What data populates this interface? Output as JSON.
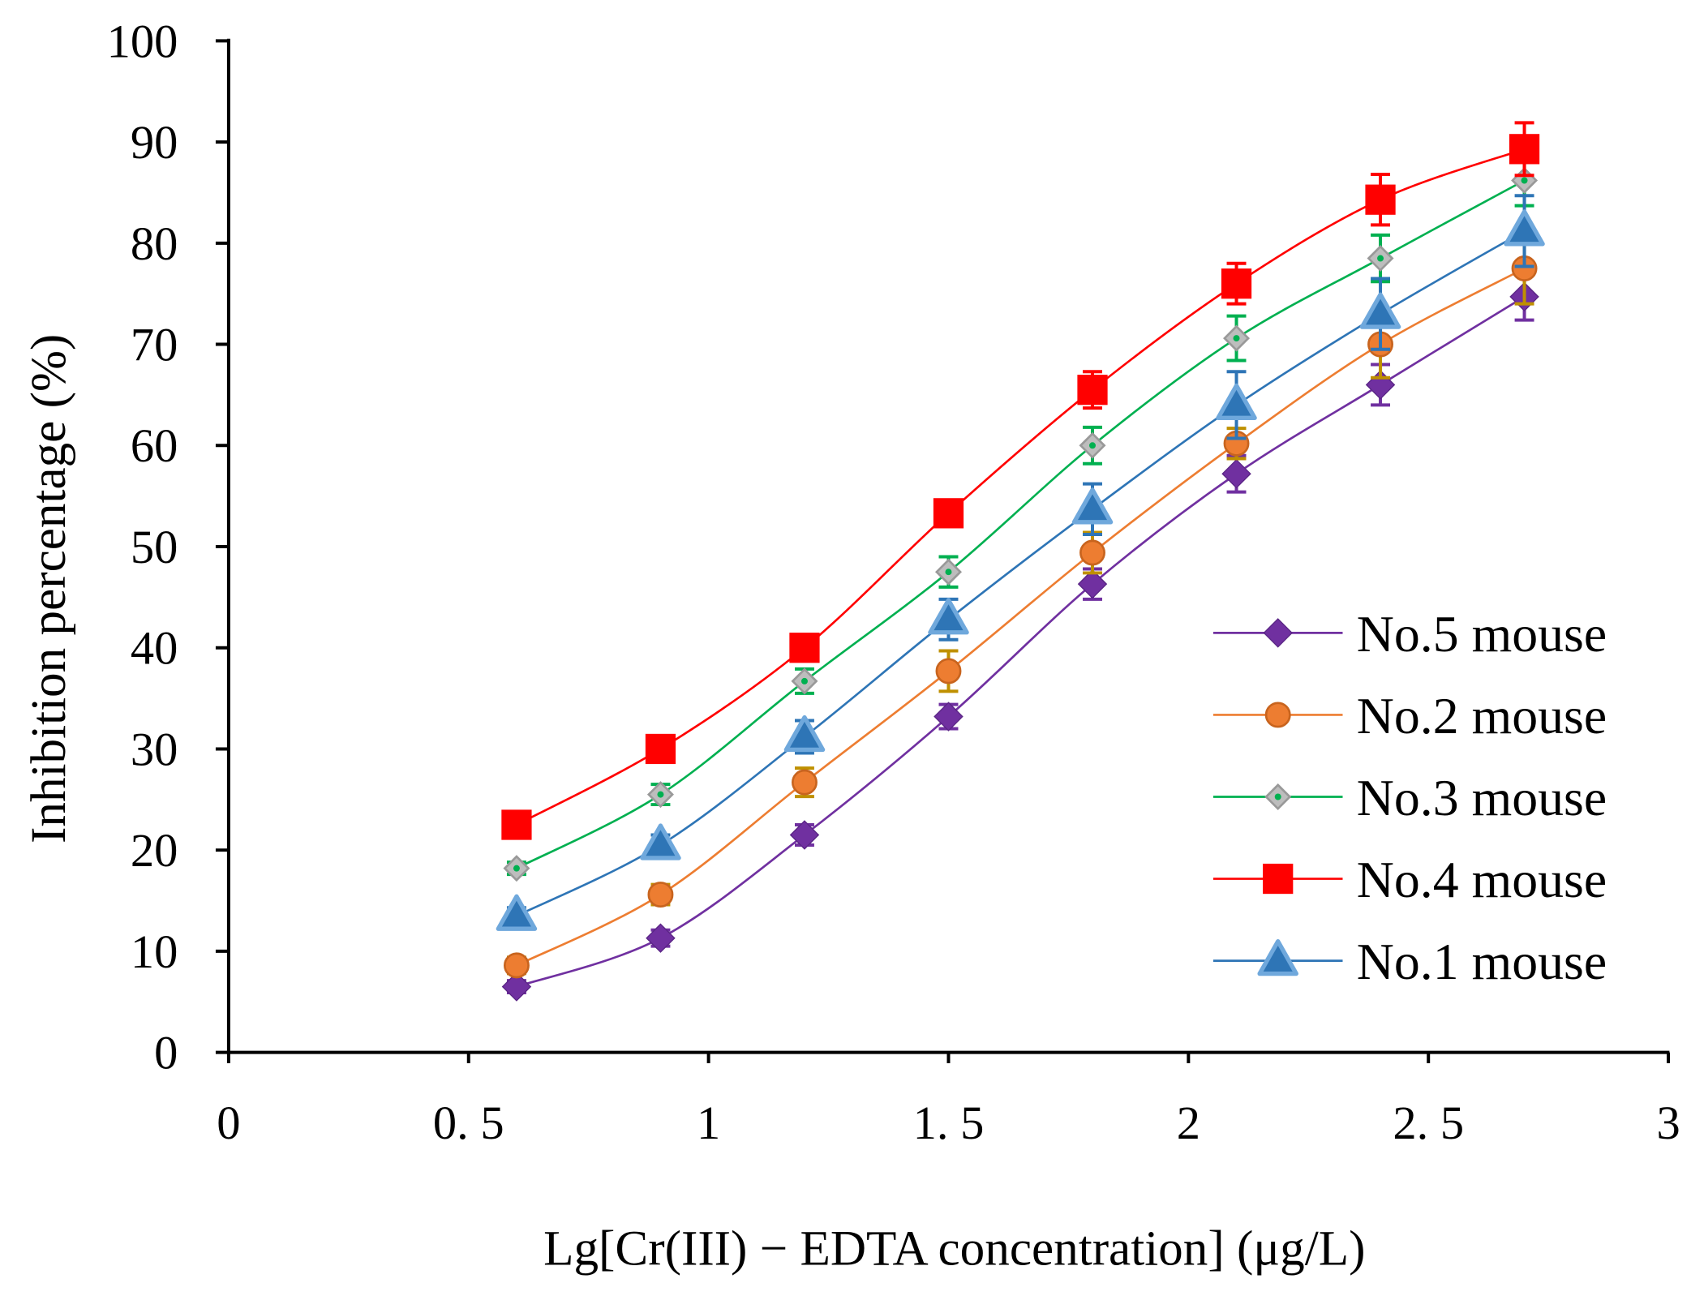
{
  "chart_data": {
    "type": "line",
    "title": "",
    "xlabel": "Lg[Cr(III) − EDTA concentration] (μg/L)",
    "ylabel": "Inhibition percentage (%)",
    "xlim": [
      0,
      3
    ],
    "ylim": [
      0,
      100
    ],
    "x_ticks": [
      0,
      0.5,
      1,
      1.5,
      2,
      2.5,
      3
    ],
    "x_tick_labels": [
      "0",
      "0. 5",
      "1",
      "1. 5",
      "2",
      "2. 5",
      "3"
    ],
    "y_ticks": [
      0,
      10,
      20,
      30,
      40,
      50,
      60,
      70,
      80,
      90,
      100
    ],
    "y_tick_labels": [
      "0",
      "10",
      "20",
      "30",
      "40",
      "50",
      "60",
      "70",
      "80",
      "90",
      "100"
    ],
    "grid": false,
    "legend_position": "bottom-right",
    "x": [
      0.6,
      0.9,
      1.2,
      1.5,
      1.8,
      2.1,
      2.4,
      2.7
    ],
    "series": [
      {
        "name": "No.5 mouse",
        "color": "#7030A0",
        "marker": "diamond",
        "values": [
          6.5,
          11.3,
          21.5,
          33.2,
          46.3,
          57.2,
          66.0,
          74.7
        ],
        "errors": [
          0.6,
          0.8,
          1.0,
          1.2,
          1.5,
          1.8,
          2.0,
          2.3
        ]
      },
      {
        "name": "No.2 mouse",
        "color": "#ED7D31",
        "marker": "circle",
        "values": [
          8.6,
          15.6,
          26.7,
          37.7,
          49.4,
          60.2,
          70.0,
          77.5
        ],
        "errors": [
          0.8,
          1.0,
          1.4,
          2.0,
          2.0,
          1.5,
          3.3,
          3.5
        ]
      },
      {
        "name": "No.3 mouse",
        "color": "#00B050",
        "marker": "small-diamond",
        "values": [
          18.2,
          25.5,
          36.7,
          47.5,
          60.0,
          70.6,
          78.5,
          86.2
        ],
        "errors": [
          0.6,
          1.0,
          1.2,
          1.5,
          1.8,
          2.2,
          2.3,
          2.5
        ]
      },
      {
        "name": "No.4 mouse",
        "color": "#FF0000",
        "marker": "square",
        "values": [
          22.5,
          30.0,
          40.0,
          53.3,
          65.5,
          76.0,
          84.3,
          89.3
        ],
        "errors": [
          0.8,
          0.8,
          1.0,
          1.0,
          1.8,
          2.0,
          2.5,
          2.6
        ]
      },
      {
        "name": "No.1 mouse",
        "color": "#2E75B6",
        "marker": "triangle",
        "values": [
          13.5,
          20.5,
          31.2,
          42.8,
          53.7,
          64.0,
          73.0,
          81.2
        ],
        "errors": [
          0.8,
          1.0,
          1.6,
          2.0,
          2.5,
          3.3,
          3.5,
          3.5
        ]
      }
    ]
  }
}
